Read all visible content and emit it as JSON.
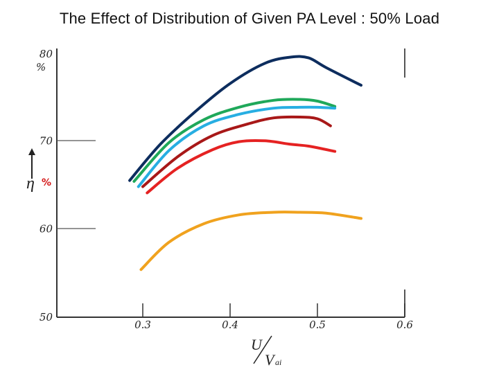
{
  "slide": {
    "title": "The Effect of Distribution of Given PA Level : 50% Load"
  },
  "chart_data": {
    "type": "line",
    "title": "The Effect of Distribution of Given PA Level : 50% Load",
    "xlabel": {
      "numerator": "U",
      "denominator": "V",
      "denominator_subscript": "ai"
    },
    "ylabel": "η",
    "ylabel_unit": "%",
    "xlim": [
      0.3,
      0.6
    ],
    "ylim": [
      50,
      80
    ],
    "xticks": [
      "0.3",
      "0.4",
      "0.5",
      "0.6"
    ],
    "yticks": [
      "50",
      "60",
      "70",
      "80"
    ],
    "grid": false,
    "legend": "none",
    "series": [
      {
        "color": "#0d2d5e",
        "x": [
          0.285,
          0.32,
          0.36,
          0.4,
          0.44,
          0.47,
          0.49,
          0.51,
          0.55
        ],
        "y": [
          65.5,
          69.6,
          73.3,
          76.5,
          78.8,
          79.5,
          79.4,
          78.3,
          76.3
        ]
      },
      {
        "color": "#1fa85a",
        "x": [
          0.29,
          0.33,
          0.37,
          0.41,
          0.45,
          0.48,
          0.5,
          0.52
        ],
        "y": [
          65.4,
          69.8,
          72.4,
          73.8,
          74.6,
          74.7,
          74.5,
          73.9
        ]
      },
      {
        "color": "#27aee2",
        "x": [
          0.295,
          0.33,
          0.37,
          0.41,
          0.45,
          0.48,
          0.5,
          0.52
        ],
        "y": [
          64.8,
          68.9,
          71.7,
          73.0,
          73.7,
          73.8,
          73.8,
          73.7
        ]
      },
      {
        "color": "#a81818",
        "x": [
          0.3,
          0.34,
          0.38,
          0.42,
          0.45,
          0.48,
          0.5,
          0.515
        ],
        "y": [
          64.8,
          68.2,
          70.6,
          71.9,
          72.6,
          72.7,
          72.5,
          71.7
        ]
      },
      {
        "color": "#e52222",
        "x": [
          0.305,
          0.34,
          0.38,
          0.41,
          0.44,
          0.47,
          0.49,
          0.52
        ],
        "y": [
          64.1,
          66.9,
          69.0,
          69.9,
          70.0,
          69.6,
          69.4,
          68.8
        ]
      },
      {
        "color": "#f0a21e",
        "x": [
          0.298,
          0.33,
          0.37,
          0.41,
          0.45,
          0.48,
          0.51,
          0.55
        ],
        "y": [
          55.4,
          58.5,
          60.6,
          61.6,
          61.9,
          61.9,
          61.8,
          61.2
        ]
      }
    ]
  }
}
